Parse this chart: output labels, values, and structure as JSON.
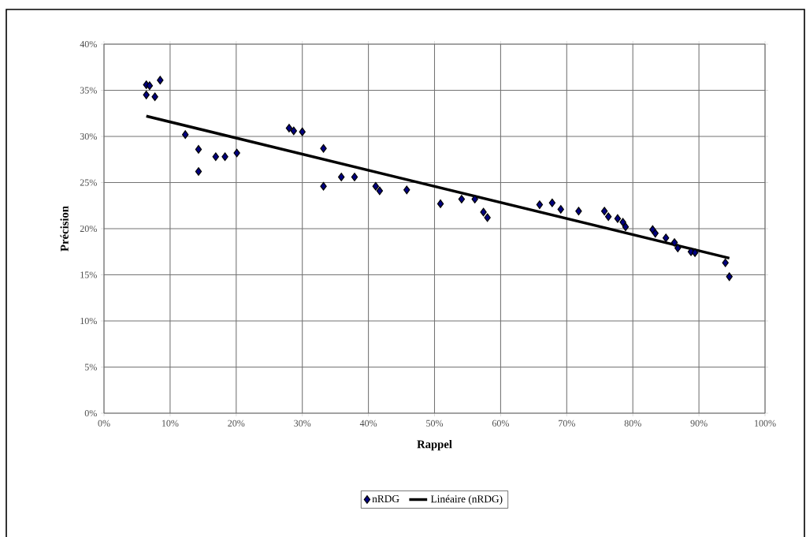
{
  "chart_data": {
    "type": "scatter",
    "xlabel": "Rappel",
    "ylabel": "Précision",
    "xlim": [
      0,
      100
    ],
    "ylim": [
      0,
      40
    ],
    "xticks": [
      {
        "value": 0,
        "label": "0%"
      },
      {
        "value": 10,
        "label": "10%"
      },
      {
        "value": 20,
        "label": "20%"
      },
      {
        "value": 30,
        "label": "30%"
      },
      {
        "value": 40,
        "label": "40%"
      },
      {
        "value": 50,
        "label": "50%"
      },
      {
        "value": 60,
        "label": "60%"
      },
      {
        "value": 70,
        "label": "70%"
      },
      {
        "value": 80,
        "label": "80%"
      },
      {
        "value": 90,
        "label": "90%"
      },
      {
        "value": 100,
        "label": "100%"
      }
    ],
    "yticks": [
      {
        "value": 0,
        "label": "0%"
      },
      {
        "value": 5,
        "label": "5%"
      },
      {
        "value": 10,
        "label": "10%"
      },
      {
        "value": 15,
        "label": "15%"
      },
      {
        "value": 20,
        "label": "20%"
      },
      {
        "value": 25,
        "label": "25%"
      },
      {
        "value": 30,
        "label": "30%"
      },
      {
        "value": 35,
        "label": "35%"
      },
      {
        "value": 40,
        "label": "40%"
      }
    ],
    "grid": true,
    "legend": "bottom",
    "series": [
      {
        "name": "nRDG",
        "marker": "diamond",
        "color": "#000080",
        "x": [
          6.4,
          6.9,
          8.5,
          6.4,
          7.7,
          12.3,
          14.3,
          14.3,
          16.9,
          18.3,
          20.1,
          28.0,
          28.7,
          30.0,
          33.2,
          33.2,
          35.9,
          37.9,
          41.1,
          41.7,
          45.8,
          50.9,
          54.1,
          56.1,
          57.4,
          58.0,
          65.9,
          67.8,
          69.1,
          71.8,
          75.7,
          76.3,
          77.7,
          78.5,
          78.9,
          83.0,
          83.4,
          85.0,
          86.3,
          86.8,
          88.8,
          89.4,
          94.0,
          94.6
        ],
        "values": [
          35.6,
          35.5,
          36.1,
          34.5,
          34.3,
          30.2,
          28.6,
          26.2,
          27.8,
          27.8,
          28.2,
          30.9,
          30.6,
          30.5,
          28.7,
          24.6,
          25.6,
          25.6,
          24.6,
          24.1,
          24.2,
          22.7,
          23.2,
          23.2,
          21.8,
          21.2,
          22.6,
          22.8,
          22.1,
          21.9,
          21.9,
          21.3,
          21.1,
          20.7,
          20.2,
          19.9,
          19.5,
          19.0,
          18.5,
          17.9,
          17.5,
          17.4,
          16.3,
          14.8
        ]
      },
      {
        "name": "Linéaire (nRDG)",
        "type": "line",
        "color": "#000000",
        "line_style": "solid",
        "x": [
          6.4,
          94.6
        ],
        "values": [
          32.2,
          16.8
        ]
      }
    ]
  }
}
